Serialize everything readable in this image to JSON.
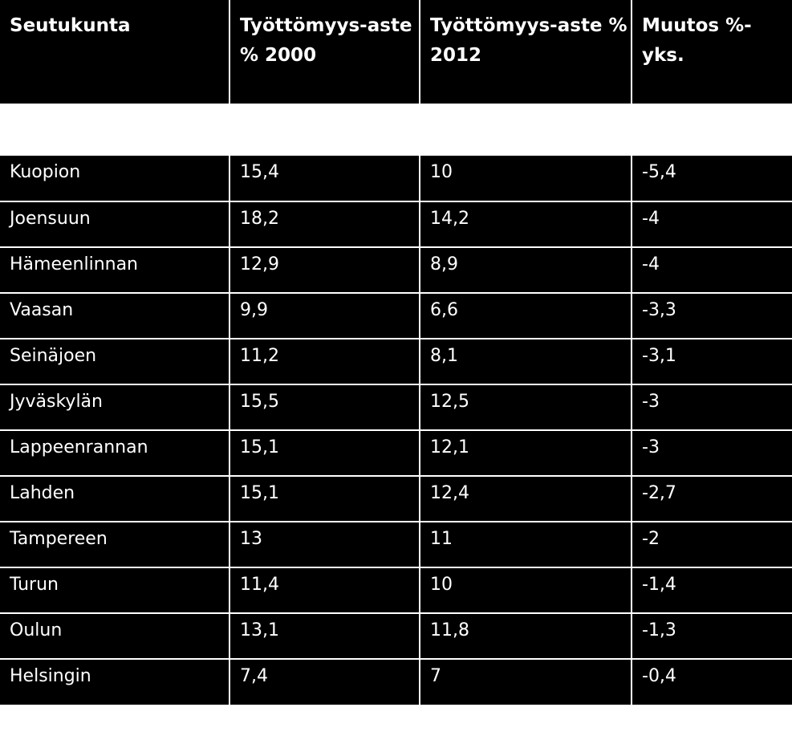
{
  "table": {
    "headers": [
      "Seutukunta",
      "Työttömyys-aste % 2000",
      "Työttömyys-aste % 2012",
      "Muutos %-yks."
    ],
    "rows": [
      [
        "Kuopion",
        "15,4",
        "10",
        "-5,4"
      ],
      [
        "Joensuun",
        "18,2",
        "14,2",
        "-4"
      ],
      [
        "Hämeenlinnan",
        "12,9",
        "8,9",
        "-4"
      ],
      [
        "Vaasan",
        "9,9",
        "6,6",
        "-3,3"
      ],
      [
        "Seinäjoen",
        "11,2",
        "8,1",
        "-3,1"
      ],
      [
        "Jyväskylän",
        "15,5",
        "12,5",
        "-3"
      ],
      [
        "Lappeenrannan",
        "15,1",
        "12,1",
        "-3"
      ],
      [
        "Lahden",
        "15,1",
        "12,4",
        "-2,7"
      ],
      [
        "Tampereen",
        "13",
        "11",
        "-2"
      ],
      [
        "Turun",
        "11,4",
        "10",
        "-1,4"
      ],
      [
        "Oulun",
        "13,1",
        "11,8",
        "-1,3"
      ],
      [
        "Helsingin",
        "7,4",
        "7",
        "-0,4"
      ]
    ]
  }
}
